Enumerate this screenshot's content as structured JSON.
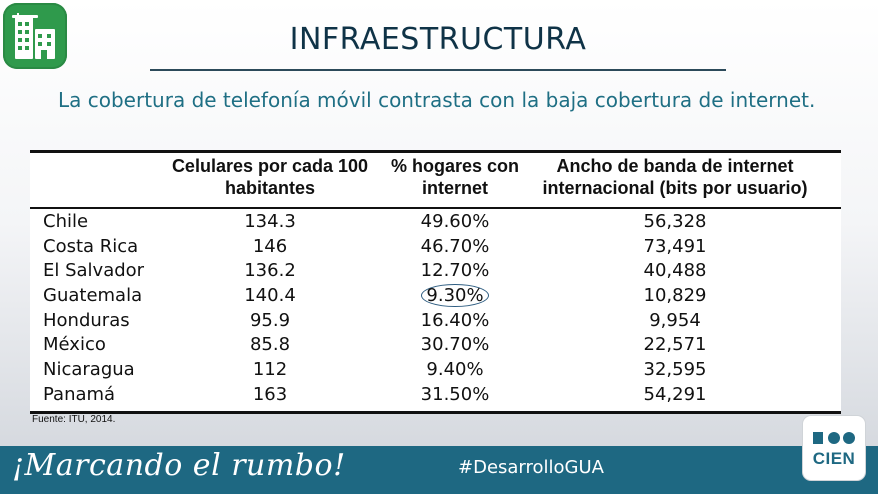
{
  "header": {
    "title": "INFRAESTRUCTURA",
    "subtitle": "La cobertura de telefonía móvil contrasta con la baja cobertura de internet."
  },
  "table": {
    "columns": [
      "",
      "Celulares por cada 100 habitantes",
      "% hogares con internet",
      "Ancho de banda de internet internacional (bits por usuario)"
    ],
    "rows": [
      [
        "Chile",
        "134.3",
        "49.60%",
        "56,328"
      ],
      [
        "Costa Rica",
        "146",
        "46.70%",
        "73,491"
      ],
      [
        "El Salvador",
        "136.2",
        "12.70%",
        "40,488"
      ],
      [
        "Guatemala",
        "140.4",
        "9.30%",
        "10,829"
      ],
      [
        "Honduras",
        "95.9",
        "16.40%",
        "9,954"
      ],
      [
        "México",
        "85.8",
        "30.70%",
        "22,571"
      ],
      [
        "Nicaragua",
        "112",
        "9.40%",
        "32,595"
      ],
      [
        "Panamá",
        "163",
        "31.50%",
        "54,291"
      ]
    ],
    "highlighted_cell": "9.30%"
  },
  "source": "Fuente: ITU, 2014.",
  "footer": {
    "slogan": "¡Marcando el rumbo!",
    "hashtag": "#DesarrolloGUA",
    "logo_text": "CIEN"
  },
  "colors": {
    "footer_bg": "#1e6882",
    "subtitle_text": "#1f6f84",
    "logo_green": "#2f9a4c"
  },
  "icons": [
    "building-logo-icon",
    "cien-logo-icon"
  ]
}
